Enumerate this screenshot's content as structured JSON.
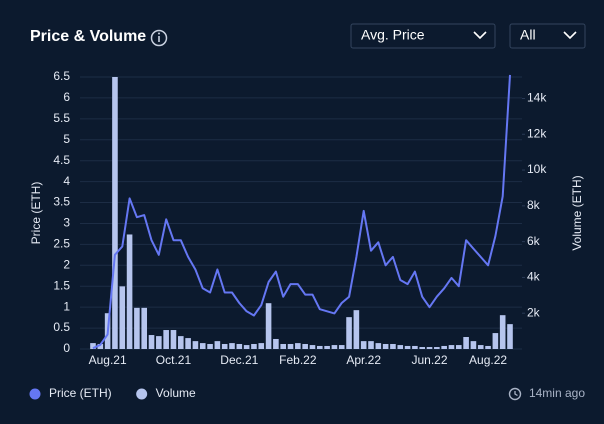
{
  "controls": {
    "metric": "Avg. Price",
    "range": "All"
  },
  "updated": "14min ago",
  "chart_data": {
    "type": "combo",
    "title": "Price & Volume",
    "ylabel": "Price (ETH)",
    "y2label": "Volume (ETH)",
    "categories": [
      null,
      null,
      "Aug.21",
      null,
      null,
      null,
      null,
      null,
      null,
      null,
      null,
      "Oct.21",
      null,
      null,
      null,
      null,
      null,
      null,
      null,
      null,
      "Dec.21",
      null,
      null,
      null,
      null,
      null,
      null,
      null,
      "Feb.22",
      null,
      null,
      null,
      null,
      null,
      null,
      null,
      null,
      "Apr.22",
      null,
      null,
      null,
      null,
      null,
      null,
      null,
      null,
      "Jun.22",
      null,
      null,
      null,
      null,
      null,
      null,
      null,
      "Aug.22",
      null,
      null,
      null
    ],
    "series": [
      {
        "name": "Price (ETH)",
        "type": "line",
        "color": "#6577f3",
        "values": [
          0.02,
          0.1,
          0.35,
          2.25,
          2.45,
          3.6,
          3.15,
          3.2,
          2.6,
          2.25,
          3.1,
          2.6,
          2.6,
          2.2,
          1.9,
          1.45,
          1.35,
          1.9,
          1.35,
          1.35,
          1.1,
          0.9,
          0.8,
          1.05,
          1.6,
          1.85,
          1.25,
          1.55,
          1.55,
          1.3,
          1.3,
          0.95,
          0.9,
          0.85,
          1.1,
          1.25,
          2.2,
          3.3,
          2.35,
          2.55,
          2.0,
          2.2,
          1.65,
          1.55,
          1.85,
          1.25,
          1.0,
          1.25,
          1.45,
          1.7,
          1.5,
          2.6,
          2.4,
          2.2,
          2.0,
          2.7,
          3.65,
          6.55
        ]
      },
      {
        "name": "Volume",
        "type": "bar",
        "axis": "y2",
        "color": "#b6c5ee",
        "values": [
          330,
          280,
          2000,
          15200,
          3500,
          6400,
          2300,
          2300,
          780,
          720,
          1060,
          1060,
          720,
          610,
          440,
          330,
          280,
          440,
          280,
          330,
          280,
          220,
          280,
          330,
          2560,
          560,
          280,
          280,
          330,
          280,
          220,
          170,
          170,
          220,
          220,
          1780,
          2170,
          440,
          440,
          330,
          280,
          280,
          220,
          170,
          170,
          110,
          110,
          110,
          170,
          220,
          220,
          670,
          440,
          220,
          170,
          890,
          1890,
          1390
        ]
      }
    ],
    "ylim": [
      0,
      6.5
    ],
    "yticks": [
      0,
      0.5,
      1,
      1.5,
      2,
      2.5,
      3,
      3.5,
      4,
      4.5,
      5,
      5.5,
      6,
      6.5
    ],
    "y2lim": [
      0,
      15200
    ],
    "y2ticks": [
      {
        "value": 2000,
        "label": "2k"
      },
      {
        "value": 4000,
        "label": "4k"
      },
      {
        "value": 6000,
        "label": "6k"
      },
      {
        "value": 8000,
        "label": "8k"
      },
      {
        "value": 10000,
        "label": "10k"
      },
      {
        "value": 12000,
        "label": "12k"
      },
      {
        "value": 14000,
        "label": "14k"
      }
    ],
    "grid": true
  }
}
